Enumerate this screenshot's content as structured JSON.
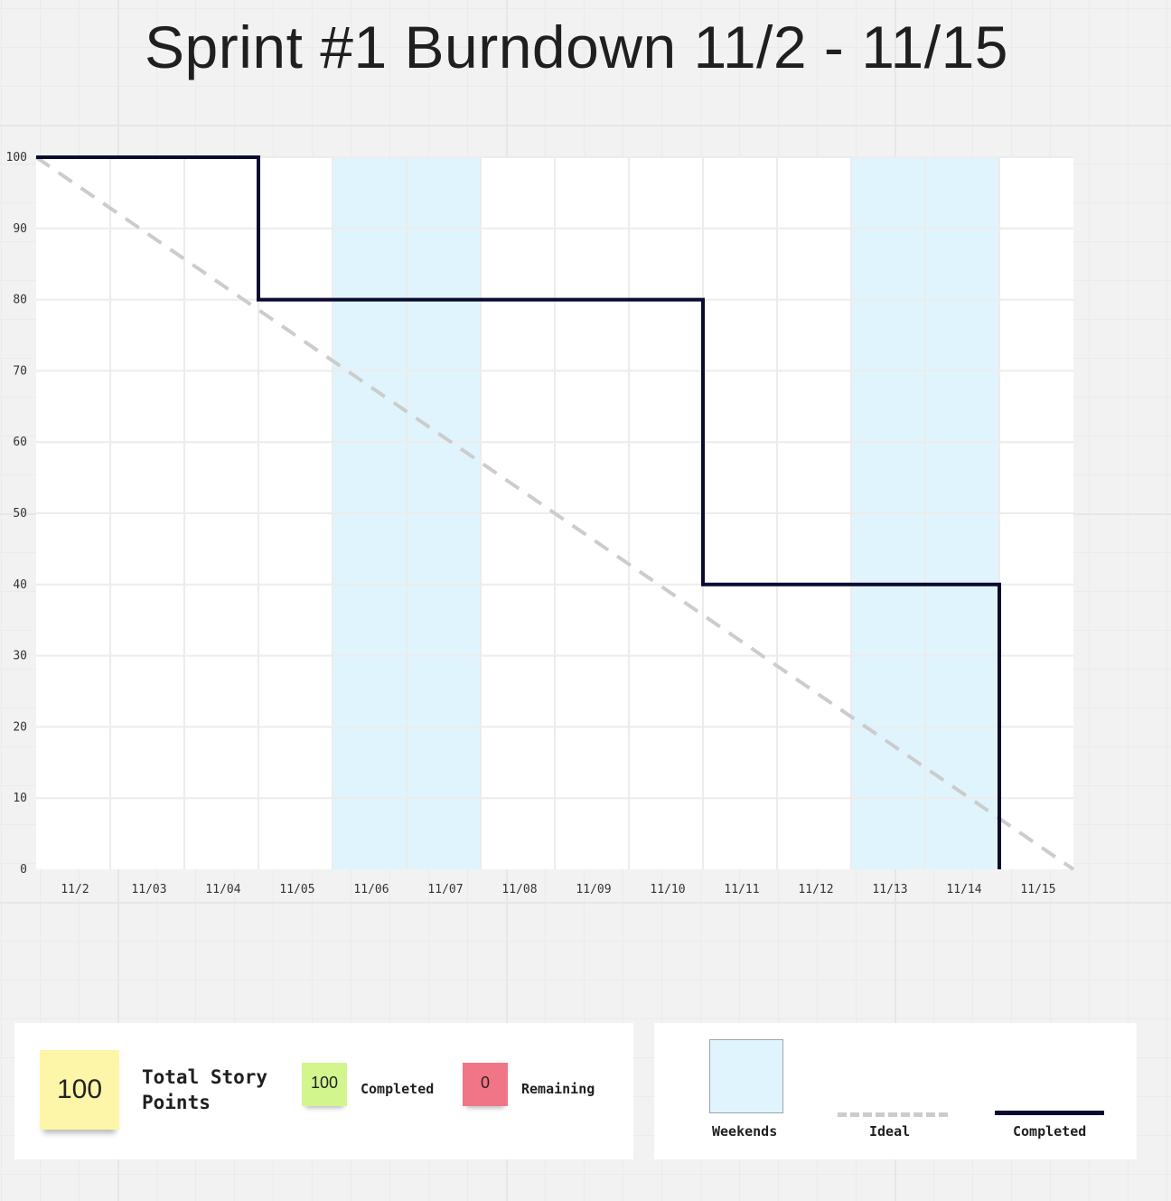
{
  "title": "Sprint #1 Burndown 11/2 - 11/15",
  "colors": {
    "weekend": "#e0f4fd",
    "ideal": "#cccccc",
    "completed": "#0a0a32",
    "total_sticky": "#fdf6a8",
    "completed_sticky": "#d2f58e",
    "remaining_sticky": "#f07586"
  },
  "chart_data": {
    "type": "line",
    "title": "Sprint #1 Burndown 11/2 - 11/15",
    "categories": [
      "11/2",
      "11/03",
      "11/04",
      "11/05",
      "11/06",
      "11/07",
      "11/08",
      "11/09",
      "11/10",
      "11/11",
      "11/12",
      "11/13",
      "11/14",
      "11/15"
    ],
    "ylim": [
      0,
      100
    ],
    "y_ticks": [
      100,
      90,
      80,
      70,
      60,
      50,
      40,
      30,
      20,
      10,
      0
    ],
    "grid": true,
    "weekends": [
      [
        "11/06",
        "11/07"
      ],
      [
        "11/13",
        "11/14"
      ]
    ],
    "series": [
      {
        "name": "Ideal",
        "style": "dashed",
        "points": [
          {
            "day": 0,
            "value": 100
          },
          {
            "day": 14,
            "value": 0
          }
        ]
      },
      {
        "name": "Completed",
        "style": "step",
        "points": [
          {
            "day": 0,
            "value": 100
          },
          {
            "day": 3,
            "value": 100
          },
          {
            "day": 3,
            "value": 80
          },
          {
            "day": 9,
            "value": 80
          },
          {
            "day": 9,
            "value": 40
          },
          {
            "day": 13,
            "value": 40
          },
          {
            "day": 13,
            "value": 0
          }
        ]
      }
    ]
  },
  "summary": {
    "total_value": "100",
    "total_label": "Total Story Points",
    "completed_value": "100",
    "completed_label": "Completed",
    "remaining_value": "0",
    "remaining_label": "Remaining"
  },
  "legend": {
    "weekends": "Weekends",
    "ideal": "Ideal",
    "completed": "Completed"
  }
}
